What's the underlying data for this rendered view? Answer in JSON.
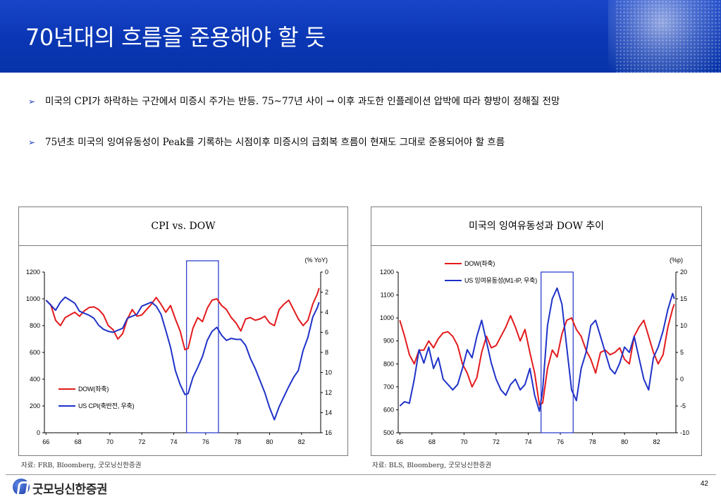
{
  "header": {
    "title": "70년대의 흐름을 준용해야 할 듯"
  },
  "bullets": [
    {
      "icon": "arrow-bullet-icon",
      "text": "미국의 CPI가 하락하는 구간에서 미증시 주가는 반등. 75~77년 사이 → 이후 과도한 인플레이션 압박에 따라 향방이 정해질 전망"
    },
    {
      "icon": "arrow-bullet-icon",
      "text": "75년초 미국의 잉여유동성이 Peak를 기록하는 시점이후 미증시의 급회복 흐름이 현재도 그대로 준용되어야 할 흐름"
    }
  ],
  "chart_data": [
    {
      "type": "line",
      "title": "CPI vs. DOW",
      "x_ticks": [
        "66",
        "68",
        "70",
        "72",
        "74",
        "76",
        "78",
        "80",
        "82"
      ],
      "xlim": [
        65.9,
        83.2
      ],
      "y_left": {
        "lim": [
          0,
          1200
        ],
        "ticks": [
          "0",
          "200",
          "400",
          "600",
          "800",
          "1000",
          "1200"
        ]
      },
      "y_right": {
        "label": "(% YoY)",
        "lim": [
          0,
          16
        ],
        "inverted": true,
        "ticks": [
          "0",
          "2",
          "4",
          "6",
          "8",
          "10",
          "12",
          "14",
          "16"
        ]
      },
      "highlight": {
        "x": [
          74.8,
          76.8
        ]
      },
      "legend_position": "bottom-left",
      "series": [
        {
          "name": "DOW(좌축)",
          "axis": "left",
          "color": "#e31a1c",
          "points": [
            [
              66.0,
              990
            ],
            [
              66.3,
              955
            ],
            [
              66.6,
              840
            ],
            [
              66.9,
              800
            ],
            [
              67.2,
              860
            ],
            [
              67.5,
              880
            ],
            [
              67.8,
              900
            ],
            [
              68.1,
              870
            ],
            [
              68.4,
              910
            ],
            [
              68.7,
              935
            ],
            [
              69.0,
              940
            ],
            [
              69.3,
              920
            ],
            [
              69.6,
              880
            ],
            [
              69.9,
              800
            ],
            [
              70.2,
              770
            ],
            [
              70.5,
              700
            ],
            [
              70.8,
              740
            ],
            [
              71.1,
              850
            ],
            [
              71.4,
              920
            ],
            [
              71.7,
              870
            ],
            [
              72.0,
              880
            ],
            [
              72.3,
              920
            ],
            [
              72.6,
              960
            ],
            [
              72.9,
              1010
            ],
            [
              73.2,
              960
            ],
            [
              73.5,
              900
            ],
            [
              73.8,
              950
            ],
            [
              74.1,
              850
            ],
            [
              74.4,
              760
            ],
            [
              74.7,
              620
            ],
            [
              74.9,
              630
            ],
            [
              75.2,
              780
            ],
            [
              75.5,
              860
            ],
            [
              75.8,
              830
            ],
            [
              76.1,
              930
            ],
            [
              76.4,
              990
            ],
            [
              76.7,
              1000
            ],
            [
              77.0,
              950
            ],
            [
              77.3,
              920
            ],
            [
              77.6,
              860
            ],
            [
              77.9,
              820
            ],
            [
              78.2,
              760
            ],
            [
              78.5,
              850
            ],
            [
              78.8,
              860
            ],
            [
              79.1,
              840
            ],
            [
              79.4,
              850
            ],
            [
              79.7,
              870
            ],
            [
              80.0,
              820
            ],
            [
              80.3,
              800
            ],
            [
              80.6,
              920
            ],
            [
              80.9,
              960
            ],
            [
              81.2,
              990
            ],
            [
              81.5,
              920
            ],
            [
              81.8,
              850
            ],
            [
              82.1,
              800
            ],
            [
              82.4,
              840
            ],
            [
              82.7,
              960
            ],
            [
              83.0,
              1040
            ],
            [
              83.1,
              1080
            ]
          ]
        },
        {
          "name": "US CPI(축반전, 우축)",
          "axis": "right",
          "color": "#1f32c8",
          "points": [
            [
              66.0,
              2.8
            ],
            [
              66.3,
              3.3
            ],
            [
              66.6,
              3.8
            ],
            [
              66.9,
              3.0
            ],
            [
              67.2,
              2.5
            ],
            [
              67.5,
              2.8
            ],
            [
              67.8,
              3.1
            ],
            [
              68.1,
              3.9
            ],
            [
              68.4,
              4.1
            ],
            [
              68.7,
              4.3
            ],
            [
              69.0,
              4.6
            ],
            [
              69.3,
              5.3
            ],
            [
              69.6,
              5.7
            ],
            [
              69.9,
              5.9
            ],
            [
              70.2,
              6.0
            ],
            [
              70.5,
              5.8
            ],
            [
              70.8,
              5.6
            ],
            [
              71.1,
              4.6
            ],
            [
              71.4,
              4.4
            ],
            [
              71.7,
              4.2
            ],
            [
              72.0,
              3.4
            ],
            [
              72.3,
              3.2
            ],
            [
              72.6,
              3.0
            ],
            [
              72.9,
              3.4
            ],
            [
              73.2,
              4.2
            ],
            [
              73.5,
              5.8
            ],
            [
              73.8,
              7.5
            ],
            [
              74.1,
              9.8
            ],
            [
              74.4,
              11.2
            ],
            [
              74.7,
              12.2
            ],
            [
              74.9,
              12.1
            ],
            [
              75.2,
              10.5
            ],
            [
              75.5,
              9.5
            ],
            [
              75.8,
              8.4
            ],
            [
              76.1,
              6.8
            ],
            [
              76.4,
              5.9
            ],
            [
              76.7,
              5.5
            ],
            [
              77.0,
              6.3
            ],
            [
              77.3,
              6.8
            ],
            [
              77.6,
              6.6
            ],
            [
              77.9,
              6.7
            ],
            [
              78.2,
              6.7
            ],
            [
              78.5,
              7.3
            ],
            [
              78.8,
              8.6
            ],
            [
              79.1,
              9.6
            ],
            [
              79.4,
              10.8
            ],
            [
              79.7,
              12.0
            ],
            [
              80.0,
              13.5
            ],
            [
              80.3,
              14.7
            ],
            [
              80.6,
              13.4
            ],
            [
              80.9,
              12.4
            ],
            [
              81.2,
              11.4
            ],
            [
              81.5,
              10.5
            ],
            [
              81.8,
              9.8
            ],
            [
              82.1,
              7.8
            ],
            [
              82.4,
              6.5
            ],
            [
              82.7,
              4.5
            ],
            [
              83.0,
              3.5
            ],
            [
              83.1,
              3.0
            ]
          ]
        }
      ]
    },
    {
      "type": "line",
      "title": "미국의 잉여유동성과 DOW 추이",
      "x_ticks": [
        "66",
        "68",
        "70",
        "72",
        "74",
        "76",
        "78",
        "80",
        "82"
      ],
      "xlim": [
        65.9,
        83.2
      ],
      "y_left": {
        "lim": [
          500,
          1200
        ],
        "ticks": [
          "500",
          "600",
          "700",
          "800",
          "900",
          "1000",
          "1100",
          "1200"
        ]
      },
      "y_right": {
        "label": "(%p)",
        "lim": [
          -10,
          20
        ],
        "ticks": [
          "-10",
          "-5",
          "0",
          "5",
          "10",
          "15",
          "20"
        ]
      },
      "highlight": {
        "x": [
          74.8,
          76.8
        ]
      },
      "legend_position": "top-left",
      "series": [
        {
          "name": "DOW(좌축)",
          "axis": "left",
          "color": "#e31a1c",
          "points": [
            [
              66.0,
              990
            ],
            [
              66.3,
              920
            ],
            [
              66.6,
              840
            ],
            [
              66.9,
              800
            ],
            [
              67.2,
              860
            ],
            [
              67.5,
              860
            ],
            [
              67.8,
              900
            ],
            [
              68.1,
              870
            ],
            [
              68.4,
              910
            ],
            [
              68.7,
              935
            ],
            [
              69.0,
              940
            ],
            [
              69.3,
              920
            ],
            [
              69.6,
              880
            ],
            [
              69.9,
              800
            ],
            [
              70.2,
              760
            ],
            [
              70.5,
              700
            ],
            [
              70.8,
              740
            ],
            [
              71.1,
              850
            ],
            [
              71.4,
              920
            ],
            [
              71.7,
              870
            ],
            [
              72.0,
              880
            ],
            [
              72.3,
              920
            ],
            [
              72.6,
              960
            ],
            [
              72.9,
              1010
            ],
            [
              73.2,
              960
            ],
            [
              73.5,
              900
            ],
            [
              73.8,
              950
            ],
            [
              74.1,
              850
            ],
            [
              74.4,
              760
            ],
            [
              74.7,
              620
            ],
            [
              74.9,
              630
            ],
            [
              75.2,
              780
            ],
            [
              75.5,
              860
            ],
            [
              75.8,
              830
            ],
            [
              76.1,
              930
            ],
            [
              76.4,
              990
            ],
            [
              76.7,
              1000
            ],
            [
              77.0,
              950
            ],
            [
              77.3,
              920
            ],
            [
              77.6,
              860
            ],
            [
              77.9,
              820
            ],
            [
              78.2,
              760
            ],
            [
              78.5,
              850
            ],
            [
              78.8,
              860
            ],
            [
              79.1,
              840
            ],
            [
              79.4,
              850
            ],
            [
              79.7,
              870
            ],
            [
              80.0,
              820
            ],
            [
              80.3,
              800
            ],
            [
              80.6,
              920
            ],
            [
              80.9,
              960
            ],
            [
              81.2,
              990
            ],
            [
              81.5,
              920
            ],
            [
              81.8,
              850
            ],
            [
              82.1,
              800
            ],
            [
              82.4,
              840
            ],
            [
              82.7,
              960
            ],
            [
              83.0,
              1040
            ],
            [
              83.1,
              1060
            ]
          ]
        },
        {
          "name": "US 잉여유동성(M1-IP, 우축)",
          "axis": "right",
          "color": "#1f32c8",
          "points": [
            [
              66.0,
              -5.0
            ],
            [
              66.3,
              -4.2
            ],
            [
              66.6,
              -4.5
            ],
            [
              66.9,
              0.0
            ],
            [
              67.2,
              5.5
            ],
            [
              67.5,
              3.0
            ],
            [
              67.8,
              6.0
            ],
            [
              68.1,
              2.0
            ],
            [
              68.4,
              4.0
            ],
            [
              68.7,
              0.0
            ],
            [
              69.0,
              -1.0
            ],
            [
              69.3,
              -2.0
            ],
            [
              69.6,
              -1.0
            ],
            [
              69.9,
              2.0
            ],
            [
              70.2,
              5.5
            ],
            [
              70.5,
              4.0
            ],
            [
              70.8,
              8.0
            ],
            [
              71.1,
              11.0
            ],
            [
              71.4,
              7.0
            ],
            [
              71.7,
              3.0
            ],
            [
              72.0,
              0.0
            ],
            [
              72.3,
              -2.0
            ],
            [
              72.6,
              -3.0
            ],
            [
              72.9,
              -1.0
            ],
            [
              73.2,
              0.0
            ],
            [
              73.5,
              -2.0
            ],
            [
              73.8,
              -1.0
            ],
            [
              74.1,
              2.0
            ],
            [
              74.4,
              -3.0
            ],
            [
              74.7,
              -6.0
            ],
            [
              74.9,
              -2.0
            ],
            [
              75.2,
              10.0
            ],
            [
              75.5,
              15.0
            ],
            [
              75.8,
              17.0
            ],
            [
              76.1,
              14.0
            ],
            [
              76.4,
              6.0
            ],
            [
              76.7,
              -2.0
            ],
            [
              77.0,
              -4.0
            ],
            [
              77.3,
              2.0
            ],
            [
              77.6,
              5.0
            ],
            [
              77.9,
              10.0
            ],
            [
              78.2,
              11.0
            ],
            [
              78.5,
              8.0
            ],
            [
              78.8,
              5.0
            ],
            [
              79.1,
              2.0
            ],
            [
              79.4,
              1.0
            ],
            [
              79.7,
              3.0
            ],
            [
              80.0,
              6.0
            ],
            [
              80.3,
              5.0
            ],
            [
              80.6,
              8.0
            ],
            [
              80.9,
              4.0
            ],
            [
              81.2,
              0.0
            ],
            [
              81.5,
              -2.0
            ],
            [
              81.8,
              4.0
            ],
            [
              82.1,
              6.0
            ],
            [
              82.4,
              9.0
            ],
            [
              82.7,
              13.0
            ],
            [
              83.0,
              16.0
            ],
            [
              83.1,
              15.0
            ]
          ]
        }
      ]
    }
  ],
  "sources": [
    "자료: FRB, Bloomberg, 굿모닝신한증권",
    "자료: BLS, Bloomberg, 굿모닝신한증권"
  ],
  "footer": {
    "logo_text": "굿모닝신한증권",
    "page_number": "42"
  },
  "colors": {
    "header_blue": "#0a36b4",
    "dow_red": "#e31a1c",
    "series_blue": "#1f32c8"
  }
}
